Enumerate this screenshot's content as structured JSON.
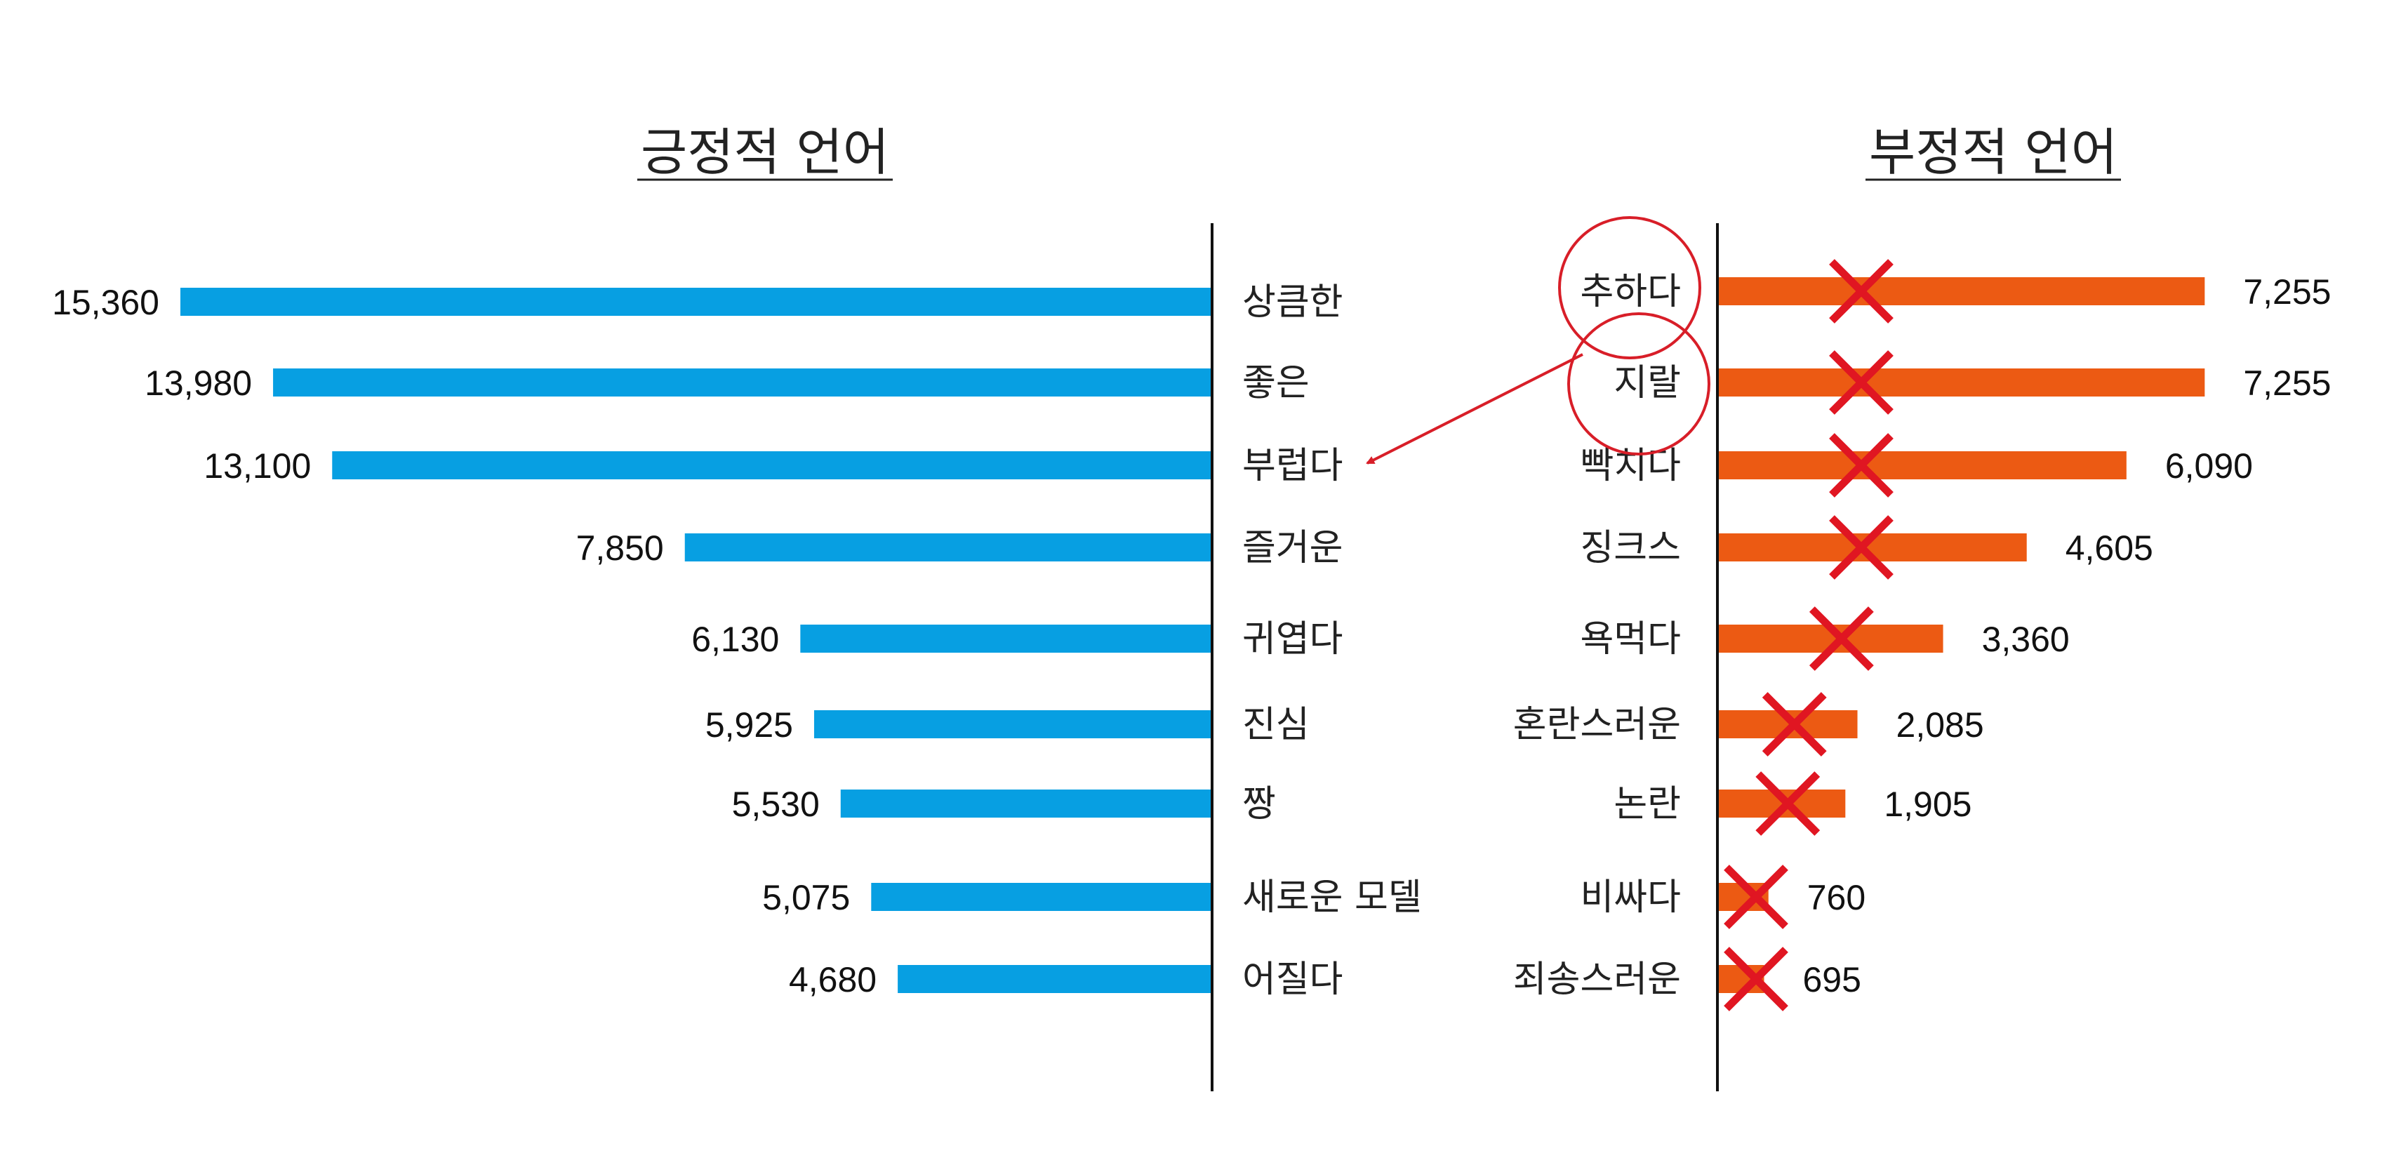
{
  "chart_data": [
    {
      "type": "bar",
      "orientation": "horizontal",
      "direction": "leftward",
      "title": "긍정적 언어",
      "categories": [
        "상큼한",
        "좋은",
        "부럽다",
        "즐거운",
        "귀엽다",
        "진심",
        "짱",
        "새로운 모델",
        "어질다"
      ],
      "values": [
        15360,
        13980,
        13100,
        7850,
        6130,
        5925,
        5530,
        5075,
        4680
      ],
      "value_labels": [
        "15,360",
        "13,980",
        "13,100",
        "7,850",
        "6,130",
        "5,925",
        "5,530",
        "5,075",
        "4,680"
      ],
      "color": "#079fe2",
      "xlim": [
        0,
        16000
      ]
    },
    {
      "type": "bar",
      "orientation": "horizontal",
      "direction": "rightward",
      "title": "부정적 언어",
      "categories": [
        "추하다",
        "지랄",
        "빡치다",
        "징크스",
        "욕먹다",
        "혼란스러운",
        "논란",
        "비싸다",
        "죄송스러운"
      ],
      "values": [
        7255,
        7255,
        6090,
        4605,
        3360,
        2085,
        1905,
        760,
        695
      ],
      "value_labels": [
        "7,255",
        "7,255",
        "6,090",
        "4,605",
        "3,360",
        "2,085",
        "1,905",
        "760",
        "695"
      ],
      "color": "#ec5a13",
      "xlim": [
        0,
        16000
      ],
      "annotations": {
        "cross_marks_on_all_bars": true,
        "cross_color": "#e01622",
        "circled_labels": [
          "추하다",
          "지랄"
        ],
        "arrow_to_label": "부럽다",
        "annotation_color": "#d81e28"
      }
    }
  ]
}
